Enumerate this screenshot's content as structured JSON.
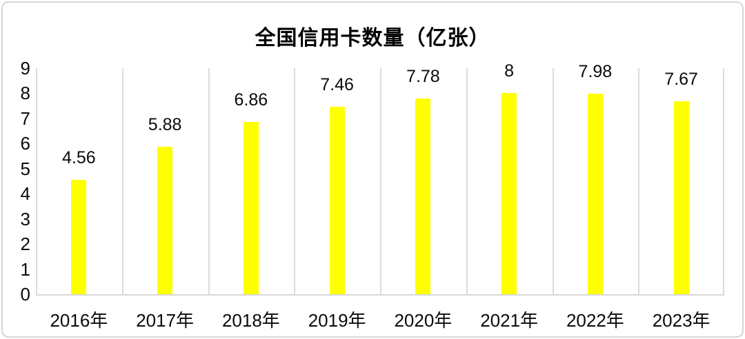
{
  "chart_data": {
    "type": "bar",
    "title": "全国信用卡数量（亿张）",
    "categories": [
      "2016年",
      "2017年",
      "2018年",
      "2019年",
      "2020年",
      "2021年",
      "2022年",
      "2023年"
    ],
    "values": [
      4.56,
      5.88,
      6.86,
      7.46,
      7.78,
      8,
      7.98,
      7.67
    ],
    "value_labels": [
      "4.56",
      "5.88",
      "6.86",
      "7.46",
      "7.78",
      "8",
      "7.98",
      "7.67"
    ],
    "xlabel": "",
    "ylabel": "",
    "ylim": [
      0,
      9
    ],
    "y_ticks": [
      "0",
      "1",
      "2",
      "3",
      "4",
      "5",
      "6",
      "7",
      "8",
      "9"
    ],
    "grid": "vertical-category-gridlines-only",
    "legend": "none",
    "bar_color": "#FFFF00",
    "gridline_color": "#DCDCDC",
    "axis_line_color": "#D9D9D9",
    "text_color": "#0A0A0A",
    "background_color": "#FFFFFF"
  }
}
